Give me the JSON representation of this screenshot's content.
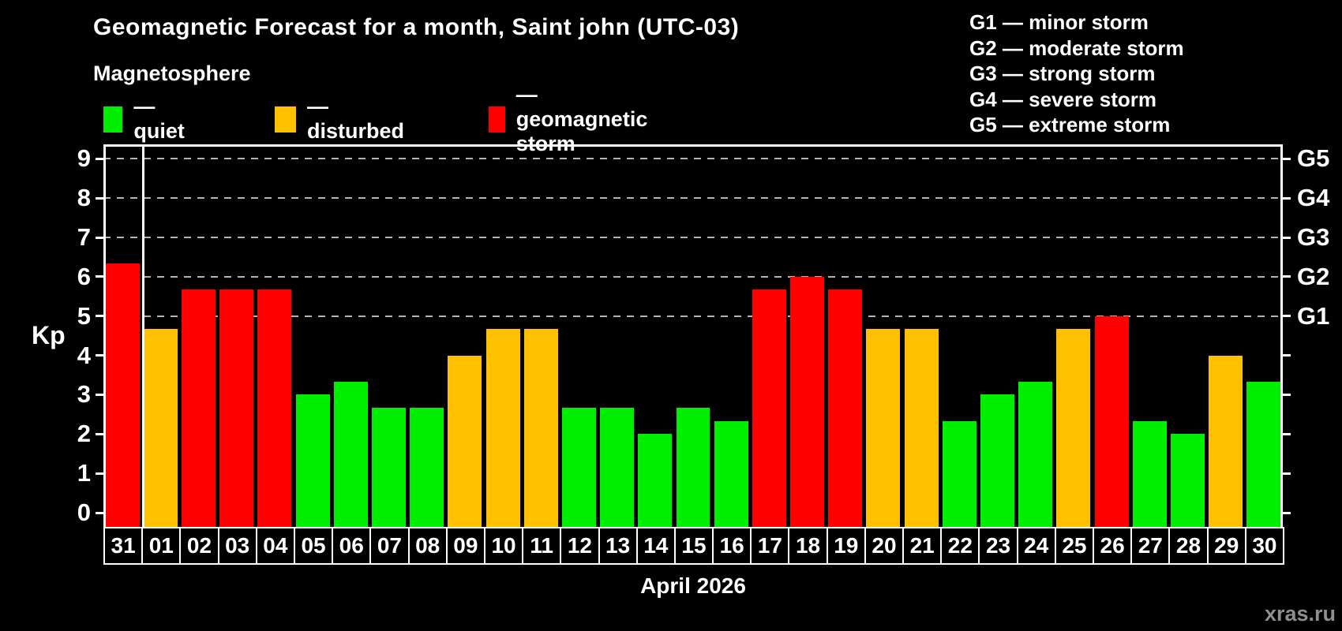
{
  "header": {
    "title": "Geomagnetic Forecast for a month, Saint john (UTC-03)",
    "subtitle": "Magnetosphere"
  },
  "legend": {
    "items": [
      {
        "state": "quiet",
        "label": "— quiet",
        "color": "#00ee00"
      },
      {
        "state": "disturbed",
        "label": "— disturbed",
        "color": "#ffc000"
      },
      {
        "state": "storm",
        "label": "— geomagnetic storm",
        "color": "#ff0000"
      }
    ]
  },
  "g_legend": {
    "lines": [
      "G1 — minor storm",
      "G2 — moderate storm",
      "G3 — strong storm",
      "G4 — severe storm",
      "G5 — extreme storm"
    ]
  },
  "axes": {
    "left_label": "Kp",
    "left_ticks": [
      "0",
      "1",
      "2",
      "3",
      "4",
      "5",
      "6",
      "7",
      "8",
      "9"
    ],
    "right_labels": {
      "5": "G1",
      "6": "G2",
      "7": "G3",
      "8": "G4",
      "9": "G5"
    },
    "x_axis_title": "April 2026"
  },
  "watermark": "xras.ru",
  "chart_data": {
    "type": "bar",
    "title": "Geomagnetic Forecast for a month, Saint john (UTC-03)",
    "xlabel": "April 2026",
    "ylabel": "Kp",
    "ylim": [
      0,
      9
    ],
    "grid": "dashed horizontal at Kp 5-9 only",
    "legend_position": "top-left",
    "categories": [
      "31",
      "01",
      "02",
      "03",
      "04",
      "05",
      "06",
      "07",
      "08",
      "09",
      "10",
      "11",
      "12",
      "13",
      "14",
      "15",
      "16",
      "17",
      "18",
      "19",
      "20",
      "21",
      "22",
      "23",
      "24",
      "25",
      "26",
      "27",
      "28",
      "29",
      "30"
    ],
    "values": [
      6.33,
      4.67,
      5.67,
      5.67,
      5.67,
      3.0,
      3.33,
      2.67,
      2.67,
      4.0,
      4.67,
      4.67,
      2.67,
      2.67,
      2.0,
      2.67,
      2.33,
      5.67,
      6.0,
      5.67,
      4.67,
      4.67,
      2.33,
      3.0,
      3.33,
      4.67,
      5.0,
      2.33,
      2.0,
      4.0,
      3.33
    ],
    "states": [
      "storm",
      "disturbed",
      "storm",
      "storm",
      "storm",
      "quiet",
      "quiet",
      "quiet",
      "quiet",
      "disturbed",
      "disturbed",
      "disturbed",
      "quiet",
      "quiet",
      "quiet",
      "quiet",
      "quiet",
      "storm",
      "storm",
      "storm",
      "disturbed",
      "disturbed",
      "quiet",
      "quiet",
      "quiet",
      "disturbed",
      "storm",
      "quiet",
      "quiet",
      "disturbed",
      "quiet"
    ],
    "state_colors": {
      "quiet": "#00ee00",
      "disturbed": "#ffc000",
      "storm": "#ff0000"
    },
    "month_separator_after_index": 0
  }
}
